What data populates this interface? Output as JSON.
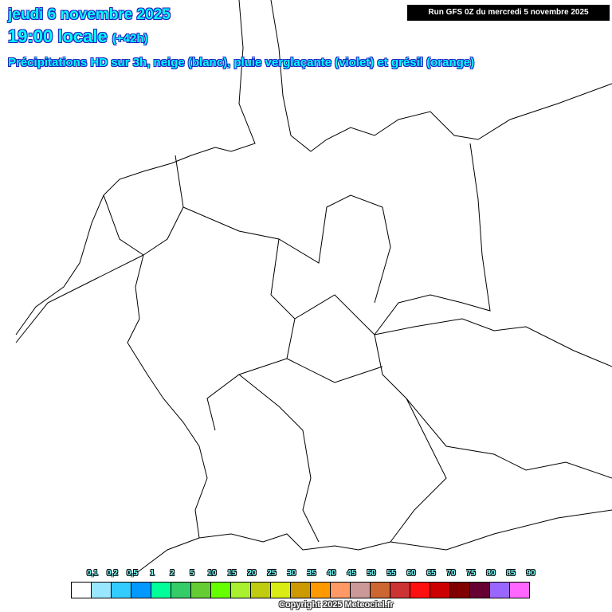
{
  "header": {
    "date": "jeudi 6 novembre 2025",
    "time": "19:00 locale",
    "lead": "(+42h)",
    "subtitle": "Précipitations HD sur 3h, neige (blanc), pluie verglaçante (violet) et grésil (orange)",
    "run": "Run GFS 0Z du mercredi 5 novembre 2025"
  },
  "legend": {
    "labels": [
      "0,1",
      "0,2",
      "0,5",
      "1",
      "2",
      "5",
      "10",
      "15",
      "20",
      "25",
      "30",
      "35",
      "40",
      "45",
      "50",
      "55",
      "60",
      "65",
      "70",
      "75",
      "80",
      "85",
      "90"
    ],
    "colors": [
      "#ffffff",
      "#99e6ff",
      "#33ccff",
      "#0099ff",
      "#00ff99",
      "#33cc66",
      "#66cc33",
      "#66ff00",
      "#a8f030",
      "#bfcc10",
      "#d9ec14",
      "#cc9900",
      "#ff9900",
      "#ff9966",
      "#cc9999",
      "#cc6633",
      "#cc3333",
      "#ff1010",
      "#cc0000",
      "#800000",
      "#660033",
      "#9966ff",
      "#ff66ff"
    ]
  },
  "copyright": "Copyright 2025 Meteociel.fr"
}
